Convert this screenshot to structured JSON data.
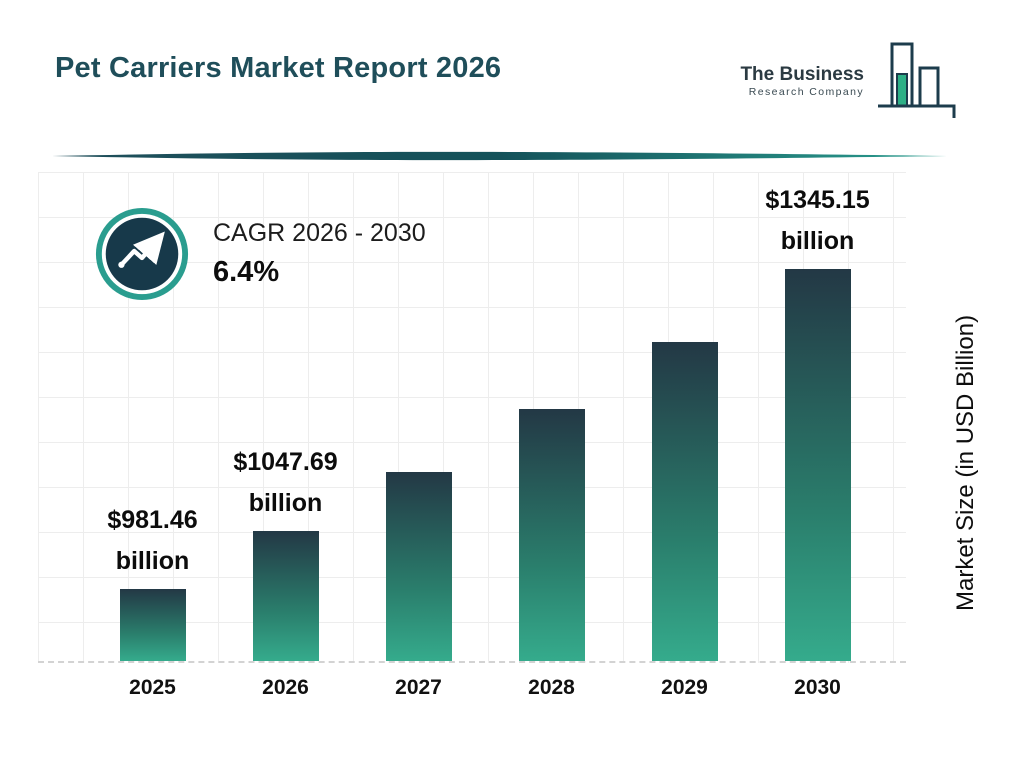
{
  "page": {
    "title": "Pet Carriers Market Report 2026"
  },
  "logo": {
    "line1": "The Business",
    "line2": "Research Company"
  },
  "cagr": {
    "label": "CAGR 2026 - 2030",
    "value": "6.4%"
  },
  "colors": {
    "title": "#1f4e5a",
    "navy": "#1d3c4c",
    "teal": "#2a9d8f",
    "bar_top": "#233845",
    "bar_bottom": "#35ab8c"
  },
  "chart_data": {
    "type": "bar",
    "title": "Pet Carriers Market Report 2026",
    "categories": [
      "2025",
      "2026",
      "2027",
      "2028",
      "2029",
      "2030"
    ],
    "values": [
      981.46,
      1047.69,
      1114.9,
      1186.5,
      1262.7,
      1345.15
    ],
    "data_labels": [
      "$981.46",
      "$1047.69",
      null,
      null,
      null,
      "$1345.15"
    ],
    "data_label_unit": "billion",
    "xlabel": "",
    "ylabel": "Market Size (in USD Billion)",
    "ylim": [
      900,
      1400
    ],
    "grid": true,
    "legend": "none",
    "annotations": [
      "CAGR 2026 - 2030 : 6.4%"
    ]
  }
}
